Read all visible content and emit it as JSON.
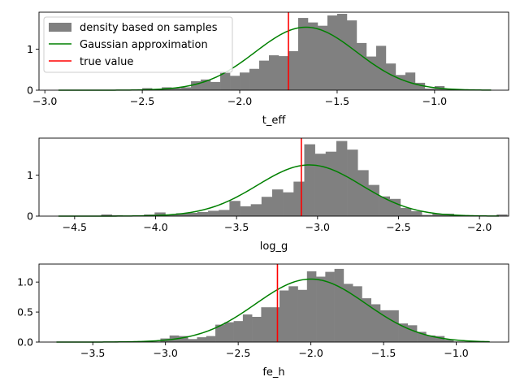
{
  "legend": {
    "hist_label": "density based on samples",
    "gauss_label": "Gaussian approximation",
    "true_label": "true value",
    "placement": "upper-left (top panel)"
  },
  "colors": {
    "hist": "#808080",
    "gauss": "#008000",
    "true": "#ff0000",
    "axis": "#000000"
  },
  "chart_data": [
    {
      "type": "bar",
      "xlabel": "t_eff",
      "xlim": [
        -3.03,
        -0.62
      ],
      "ylim": [
        0,
        1.9
      ],
      "xticks": [
        -3.0,
        -2.5,
        -2.0,
        -1.5,
        -1.0
      ],
      "xtick_labels": [
        "−3.0",
        "−2.5",
        "−2.0",
        "−1.5",
        "−1.0"
      ],
      "yticks": [
        0,
        1
      ],
      "ytick_labels": [
        "0",
        "1"
      ],
      "bin_width": 0.05,
      "bins": [
        [
          -2.5,
          0.05
        ],
        [
          -2.45,
          0.02
        ],
        [
          -2.4,
          0.07
        ],
        [
          -2.35,
          0.05
        ],
        [
          -2.3,
          0.07
        ],
        [
          -2.25,
          0.22
        ],
        [
          -2.2,
          0.26
        ],
        [
          -2.15,
          0.2
        ],
        [
          -2.1,
          0.42
        ],
        [
          -2.05,
          0.35
        ],
        [
          -2.0,
          0.43
        ],
        [
          -1.95,
          0.52
        ],
        [
          -1.9,
          0.72
        ],
        [
          -1.85,
          0.85
        ],
        [
          -1.8,
          0.83
        ],
        [
          -1.75,
          0.95
        ],
        [
          -1.7,
          1.76
        ],
        [
          -1.65,
          1.65
        ],
        [
          -1.6,
          1.57
        ],
        [
          -1.55,
          1.82
        ],
        [
          -1.5,
          1.86
        ],
        [
          -1.45,
          1.7
        ],
        [
          -1.4,
          1.15
        ],
        [
          -1.35,
          0.82
        ],
        [
          -1.3,
          1.08
        ],
        [
          -1.25,
          0.65
        ],
        [
          -1.2,
          0.37
        ],
        [
          -1.15,
          0.43
        ],
        [
          -1.1,
          0.18
        ],
        [
          -1.05,
          0.04
        ],
        [
          -1.0,
          0.1
        ],
        [
          -0.95,
          0.02
        ]
      ],
      "gauss": {
        "mu": -1.66,
        "sigma": 0.26,
        "x_range": [
          -2.93,
          -0.71
        ]
      },
      "true_value": -1.75
    },
    {
      "type": "bar",
      "xlabel": "log_g",
      "xlim": [
        -4.72,
        -1.82
      ],
      "ylim": [
        0,
        1.9
      ],
      "xticks": [
        -4.5,
        -4.0,
        -3.5,
        -3.0,
        -2.5,
        -2.0
      ],
      "xtick_labels": [
        "−4.5",
        "−4.0",
        "−3.5",
        "−3.0",
        "−2.5",
        "−2.0"
      ],
      "yticks": [
        0,
        1
      ],
      "ytick_labels": [
        "0",
        "1"
      ],
      "bin_width": 0.066,
      "bins": [
        [
          -4.6,
          0.01
        ],
        [
          -4.534,
          0.01
        ],
        [
          -4.468,
          0.01
        ],
        [
          -4.402,
          0.01
        ],
        [
          -4.336,
          0.04
        ],
        [
          -4.27,
          0.02
        ],
        [
          -4.204,
          0.01
        ],
        [
          -4.138,
          0.01
        ],
        [
          -4.072,
          0.04
        ],
        [
          -4.006,
          0.09
        ],
        [
          -3.94,
          0.03
        ],
        [
          -3.874,
          0.07
        ],
        [
          -3.808,
          0.08
        ],
        [
          -3.742,
          0.1
        ],
        [
          -3.676,
          0.13
        ],
        [
          -3.61,
          0.15
        ],
        [
          -3.544,
          0.37
        ],
        [
          -3.478,
          0.24
        ],
        [
          -3.412,
          0.29
        ],
        [
          -3.346,
          0.47
        ],
        [
          -3.28,
          0.65
        ],
        [
          -3.214,
          0.58
        ],
        [
          -3.148,
          0.84
        ],
        [
          -3.082,
          1.75
        ],
        [
          -3.016,
          1.52
        ],
        [
          -2.95,
          1.57
        ],
        [
          -2.884,
          1.83
        ],
        [
          -2.818,
          1.62
        ],
        [
          -2.752,
          1.12
        ],
        [
          -2.686,
          0.76
        ],
        [
          -2.62,
          0.48
        ],
        [
          -2.554,
          0.42
        ],
        [
          -2.488,
          0.2
        ],
        [
          -2.422,
          0.12
        ],
        [
          -2.356,
          0.03
        ],
        [
          -2.29,
          0.06
        ],
        [
          -2.224,
          0.06
        ],
        [
          -2.158,
          0.03
        ],
        [
          -2.092,
          0.01
        ],
        [
          -2.026,
          0.01
        ],
        [
          -1.96,
          0.01
        ],
        [
          -1.894,
          0.04
        ]
      ],
      "gauss": {
        "mu": -3.05,
        "sigma": 0.32,
        "x_range": [
          -4.6,
          -1.88
        ]
      },
      "true_value": -3.1
    },
    {
      "type": "bar",
      "xlabel": "fe_h",
      "xlim": [
        -3.87,
        -0.64
      ],
      "ylim": [
        0,
        1.3
      ],
      "xticks": [
        -3.5,
        -3.0,
        -2.5,
        -2.0,
        -1.5,
        -1.0
      ],
      "xtick_labels": [
        "−3.5",
        "−3.0",
        "−2.5",
        "−2.0",
        "−1.5",
        "−1.0"
      ],
      "yticks": [
        0.0,
        0.5,
        1.0
      ],
      "ytick_labels": [
        "0.0",
        "0.5",
        "1.0"
      ],
      "bin_width": 0.063,
      "bins": [
        [
          -3.35,
          0.01
        ],
        [
          -3.287,
          0.01
        ],
        [
          -3.224,
          0.01
        ],
        [
          -3.161,
          0.01
        ],
        [
          -3.098,
          0.01
        ],
        [
          -3.035,
          0.06
        ],
        [
          -2.972,
          0.11
        ],
        [
          -2.909,
          0.1
        ],
        [
          -2.846,
          0.05
        ],
        [
          -2.783,
          0.08
        ],
        [
          -2.72,
          0.1
        ],
        [
          -2.657,
          0.29
        ],
        [
          -2.594,
          0.33
        ],
        [
          -2.531,
          0.35
        ],
        [
          -2.468,
          0.46
        ],
        [
          -2.405,
          0.42
        ],
        [
          -2.342,
          0.58
        ],
        [
          -2.279,
          0.58
        ],
        [
          -2.216,
          0.86
        ],
        [
          -2.153,
          0.93
        ],
        [
          -2.09,
          0.87
        ],
        [
          -2.027,
          1.18
        ],
        [
          -1.964,
          1.09
        ],
        [
          -1.901,
          1.17
        ],
        [
          -1.838,
          1.22
        ],
        [
          -1.775,
          0.97
        ],
        [
          -1.712,
          0.93
        ],
        [
          -1.649,
          0.73
        ],
        [
          -1.586,
          0.63
        ],
        [
          -1.523,
          0.53
        ],
        [
          -1.46,
          0.53
        ],
        [
          -1.397,
          0.31
        ],
        [
          -1.334,
          0.28
        ],
        [
          -1.271,
          0.17
        ],
        [
          -1.208,
          0.11
        ],
        [
          -1.145,
          0.1
        ],
        [
          -1.082,
          0.04
        ],
        [
          -1.019,
          0.01
        ],
        [
          -0.956,
          0.01
        ]
      ],
      "gauss": {
        "mu": -2.0,
        "sigma": 0.38,
        "x_range": [
          -3.75,
          -0.77
        ]
      },
      "true_value": -2.23
    }
  ]
}
